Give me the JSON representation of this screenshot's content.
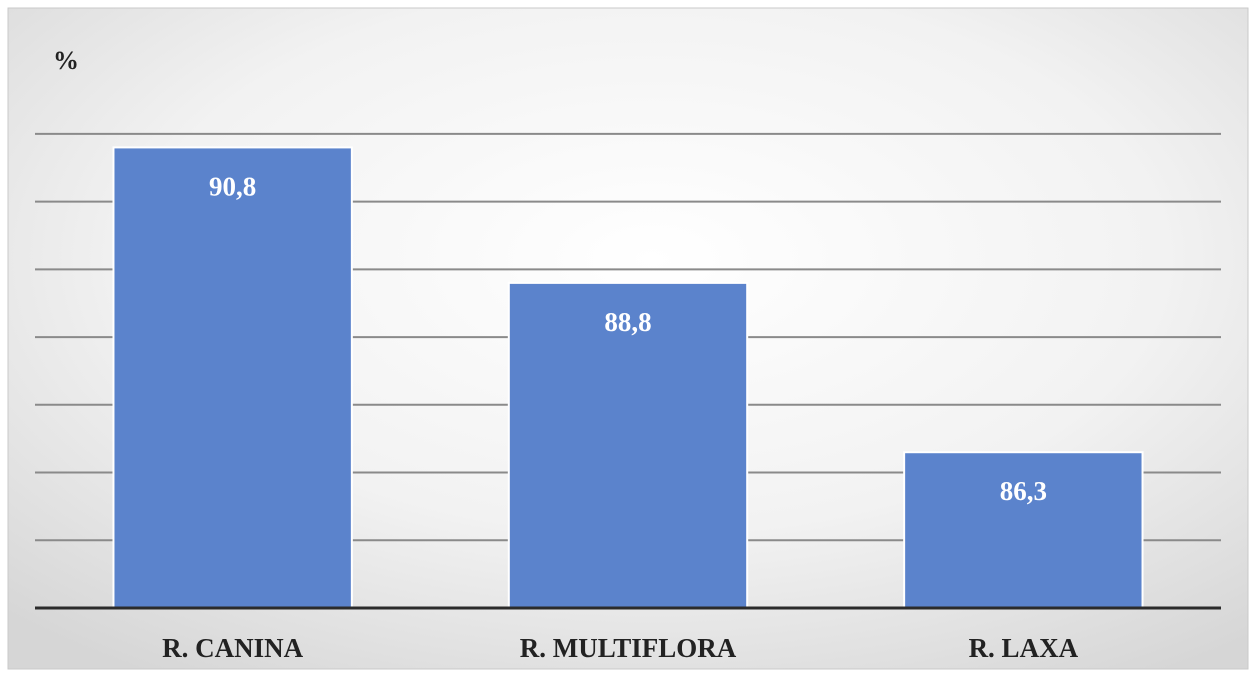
{
  "chart_data": {
    "type": "bar",
    "ylabel": "%",
    "categories": [
      "R. CANINA",
      "R. MULTIFLORA",
      "R. LAXA"
    ],
    "values": [
      90.8,
      88.8,
      86.3
    ],
    "data_labels": [
      "90,8",
      "88,8",
      "86,3"
    ],
    "ylim": [
      84,
      91.5
    ],
    "gridlines": [
      85,
      86,
      87,
      88,
      89,
      90,
      91
    ],
    "grid": true,
    "legend": "none",
    "bar_color": "#5b83cc",
    "bar_border_color": "#ffffff",
    "label_color": "#ffffff",
    "axis_text_color": "#222222"
  }
}
